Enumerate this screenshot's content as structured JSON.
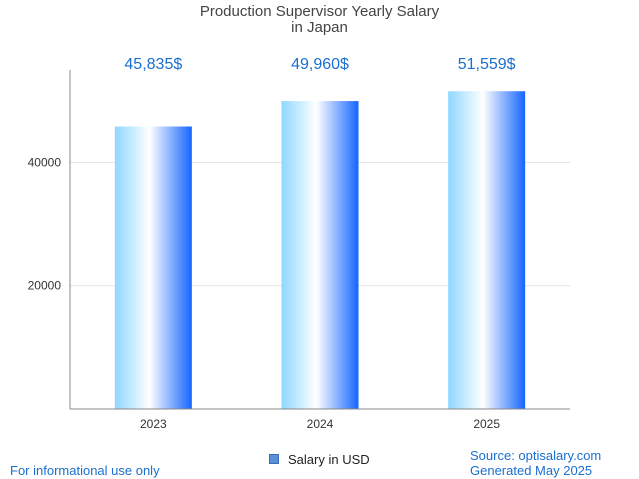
{
  "chart_data": {
    "type": "bar",
    "title_lines": [
      "Production Supervisor Yearly Salary",
      "in Japan"
    ],
    "categories": [
      "2023",
      "2024",
      "2025"
    ],
    "series": [
      {
        "name": "Salary in USD",
        "values": [
          45835,
          49960,
          51559
        ],
        "labels": [
          "45,835$",
          "49,960$",
          "51,559$"
        ]
      }
    ],
    "xlabel": "",
    "ylabel": "",
    "yticks": [
      20000,
      40000
    ],
    "ytick_labels": [
      "20000",
      "40000"
    ],
    "ylim": [
      0,
      55000
    ],
    "grid": true,
    "legend_position": "bottom-center",
    "bar_gradient": [
      "#8fd7ff",
      "#ffffff",
      "#1565ff"
    ],
    "label_color": "#1a6fd0"
  },
  "footer": {
    "left": "For informational use only",
    "source": "Source: optisalary.com",
    "generated": "Generated May 2025"
  }
}
